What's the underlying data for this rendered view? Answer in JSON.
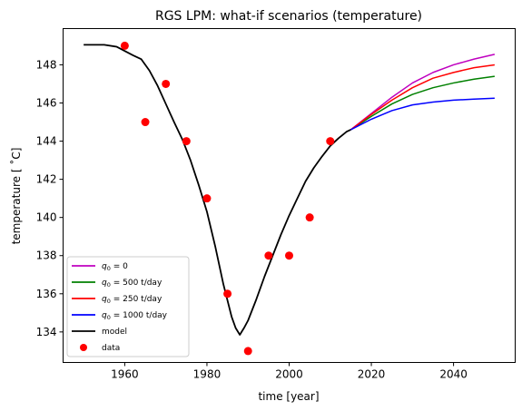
{
  "chart_data": {
    "type": "line",
    "title": "RGS LPM: what-if scenarios (temperature)",
    "xlabel": "time [year]",
    "ylabel": "temperature [ ˚C]",
    "xlim": [
      1945,
      2055
    ],
    "ylim": [
      132.4,
      149.9
    ],
    "xticks": [
      1960,
      1980,
      2000,
      2020,
      2040
    ],
    "yticks": [
      134,
      136,
      138,
      140,
      142,
      144,
      146,
      148
    ],
    "legend_position": "lower-left",
    "grid": false,
    "model": {
      "name": "model",
      "color": "#000000",
      "x": [
        1950,
        1955,
        1958,
        1962,
        1964,
        1966,
        1968,
        1970,
        1972,
        1974,
        1976,
        1978,
        1980,
        1982,
        1984,
        1986,
        1987,
        1988,
        1989,
        1990,
        1992,
        1994,
        1996,
        1998,
        2000,
        2002,
        2004,
        2006,
        2008,
        2010,
        2012,
        2014,
        2015
      ],
      "y": [
        149.05,
        149.05,
        148.95,
        148.5,
        148.3,
        147.7,
        146.9,
        145.95,
        145.0,
        144.1,
        143.0,
        141.7,
        140.3,
        138.5,
        136.5,
        134.8,
        134.2,
        133.85,
        134.2,
        134.6,
        135.7,
        136.9,
        138.0,
        139.1,
        140.1,
        141.0,
        141.9,
        142.6,
        143.2,
        143.75,
        144.15,
        144.5,
        144.6
      ]
    },
    "series": [
      {
        "name": "$q_0$ = 0",
        "label_base": "q",
        "label_sub": "0",
        "label_rest": " = 0",
        "color": "#bf00bf",
        "x": [
          2015,
          2020,
          2025,
          2030,
          2035,
          2040,
          2045,
          2050
        ],
        "y": [
          144.6,
          145.45,
          146.3,
          147.05,
          147.6,
          148.0,
          148.3,
          148.55
        ]
      },
      {
        "name": "$q_0$ = 500 t/day",
        "label_base": "q",
        "label_sub": "0",
        "label_rest": " = 500 t/day",
        "color": "#008000",
        "x": [
          2015,
          2020,
          2025,
          2030,
          2035,
          2040,
          2045,
          2050
        ],
        "y": [
          144.6,
          145.3,
          145.95,
          146.45,
          146.8,
          147.05,
          147.25,
          147.4
        ]
      },
      {
        "name": "$q_0$ = 250 t/day",
        "label_base": "q",
        "label_sub": "0",
        "label_rest": " = 250 t/day",
        "color": "#ff0000",
        "x": [
          2015,
          2020,
          2025,
          2030,
          2035,
          2040,
          2045,
          2050
        ],
        "y": [
          144.6,
          145.4,
          146.15,
          146.8,
          147.3,
          147.6,
          147.85,
          148.0
        ]
      },
      {
        "name": "$q_0$ = 1000 t/day",
        "label_base": "q",
        "label_sub": "0",
        "label_rest": " = 1000 t/day",
        "color": "#0000ff",
        "x": [
          2015,
          2020,
          2025,
          2030,
          2035,
          2040,
          2045,
          2050
        ],
        "y": [
          144.6,
          145.15,
          145.6,
          145.9,
          146.05,
          146.15,
          146.2,
          146.25
        ]
      }
    ],
    "data_points": {
      "name": "data",
      "color": "#ff0000",
      "x": [
        1960,
        1965,
        1970,
        1975,
        1980,
        1985,
        1990,
        1995,
        2000,
        2005,
        2010
      ],
      "y": [
        149,
        145,
        147,
        144,
        141,
        136,
        133,
        138,
        138,
        140,
        144
      ]
    },
    "legend_order": [
      "$q_0$ = 0",
      "$q_0$ = 500 t/day",
      "$q_0$ = 250 t/day",
      "$q_0$ = 1000 t/day",
      "model",
      "data"
    ]
  }
}
